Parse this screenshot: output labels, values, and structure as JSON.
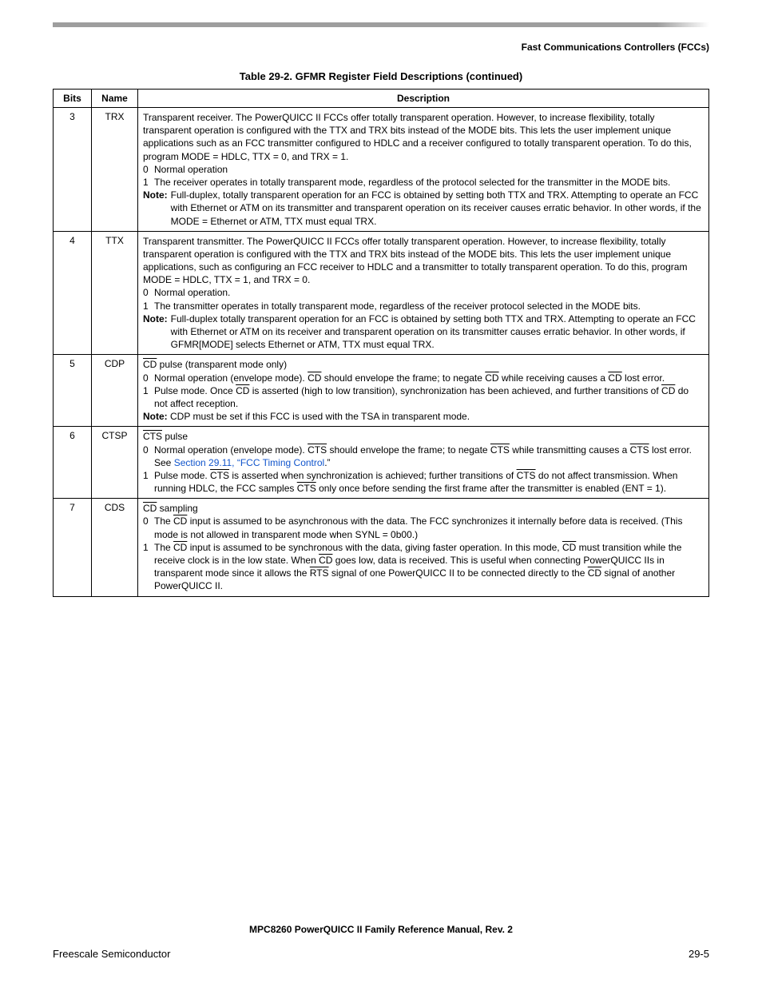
{
  "header": {
    "section_title": "Fast Communications Controllers (FCCs)"
  },
  "table": {
    "caption": "Table 29-2. GFMR Register Field Descriptions (continued)",
    "columns": {
      "bits": "Bits",
      "name": "Name",
      "desc": "Description"
    },
    "rows": [
      {
        "bits": "3",
        "name": "TRX",
        "intro": "Transparent receiver. The PowerQUICC II FCCs offer totally transparent operation. However, to increase flexibility, totally transparent operation is configured with the TTX and TRX bits instead of the MODE bits. This lets the user implement unique applications such as an FCC transmitter configured to HDLC and a receiver configured to totally transparent operation. To do this, program MODE = HDLC, TTX = 0, and TRX = 1.",
        "items": [
          {
            "n": "0",
            "t": "Normal operation"
          },
          {
            "n": "1",
            "t": "The receiver operates in totally transparent mode, regardless of the protocol selected for the transmitter in the MODE bits."
          }
        ],
        "note_label": "Note:",
        "note": "Full-duplex, totally transparent operation for an FCC is obtained by setting both TTX and TRX. Attempting to operate an FCC with Ethernet or ATM on its transmitter and transparent operation on its receiver causes erratic behavior. In other words, if the MODE = Ethernet or ATM, TTX must equal TRX."
      },
      {
        "bits": "4",
        "name": "TTX",
        "intro": "Transparent transmitter. The PowerQUICC II FCCs offer totally transparent operation. However, to increase flexibility, totally transparent operation is configured with the TTX and TRX bits instead of the MODE bits. This lets the user implement unique applications, such as configuring an FCC receiver to HDLC and a transmitter to totally transparent operation. To do this, program MODE = HDLC, TTX = 1, and TRX = 0.",
        "items": [
          {
            "n": "0",
            "t": "Normal operation."
          },
          {
            "n": "1",
            "t": "The transmitter operates in totally transparent mode, regardless of the receiver protocol selected in the MODE bits."
          }
        ],
        "note_label": "Note:",
        "note": "Full-duplex totally transparent operation for an FCC is obtained by setting both TTX and TRX. Attempting to operate an FCC with Ethernet or ATM on its receiver and transparent operation on its transmitter causes erratic behavior. In other words, if GFMR[MODE] selects Ethernet or ATM, TTX must equal TRX."
      },
      {
        "bits": "5",
        "name": "CDP",
        "signal": "CD",
        "intro_tail": " pulse (transparent mode only)",
        "items_html": [
          {
            "n": "0",
            "html": "Normal operation (envelope mode). <span class=\"ov\">CD</span> should envelope the frame; to negate <span class=\"ov\">CD</span> while receiving causes a <span class=\"ov\">CD</span> lost error."
          },
          {
            "n": "1",
            "html": "Pulse mode. Once <span class=\"ov\">CD</span> is asserted (high to low transition), synchronization has been achieved, and further transitions of <span class=\"ov\">CD</span> do not affect reception."
          }
        ],
        "note_label": "Note:",
        "note": "CDP must be set if this FCC is used with the TSA in transparent mode."
      },
      {
        "bits": "6",
        "name": "CTSP",
        "signal": "CTS",
        "intro_tail": " pulse",
        "items_html": [
          {
            "n": "0",
            "html": "Normal operation (envelope mode). <span class=\"ov\">CTS</span> should envelope the frame; to negate <span class=\"ov\">CTS</span> while transmitting causes a <span class=\"ov\">CTS</span> lost error. See <span class=\"link\">Section 29.11, “FCC Timing Control</span>.”"
          },
          {
            "n": "1",
            "html": "Pulse mode. <span class=\"ov\">CTS</span> is asserted when synchronization is achieved; further transitions of <span class=\"ov\">CTS</span> do not affect transmission. When running HDLC, the FCC samples <span class=\"ov\">CTS</span> only once before sending the first frame after the transmitter is enabled (ENT = 1)."
          }
        ]
      },
      {
        "bits": "7",
        "name": "CDS",
        "signal": "CD",
        "intro_tail": " sampling",
        "items_html": [
          {
            "n": "0",
            "html": "The <span class=\"ov\">CD</span> input is assumed to be asynchronous with the data. The FCC synchronizes it internally before data is received. (This mode is not allowed in transparent mode when SYNL = 0b00.)"
          },
          {
            "n": "1",
            "html": "The <span class=\"ov\">CD</span> input is assumed to be synchronous with the data, giving faster operation. In this mode, <span class=\"ov\">CD</span> must transition while the receive clock is in the low state. When <span class=\"ov\">CD</span> goes low, data is received. This is useful when connecting PowerQUICC IIs in transparent mode since it allows the <span class=\"ov\">RTS</span> signal of one PowerQUICC II to be connected directly to the <span class=\"ov\">CD</span> signal of another PowerQUICC II."
          }
        ]
      }
    ]
  },
  "footer": {
    "doc_title": "MPC8260 PowerQUICC II Family Reference Manual, Rev. 2",
    "left": "Freescale Semiconductor",
    "right": "29-5"
  }
}
